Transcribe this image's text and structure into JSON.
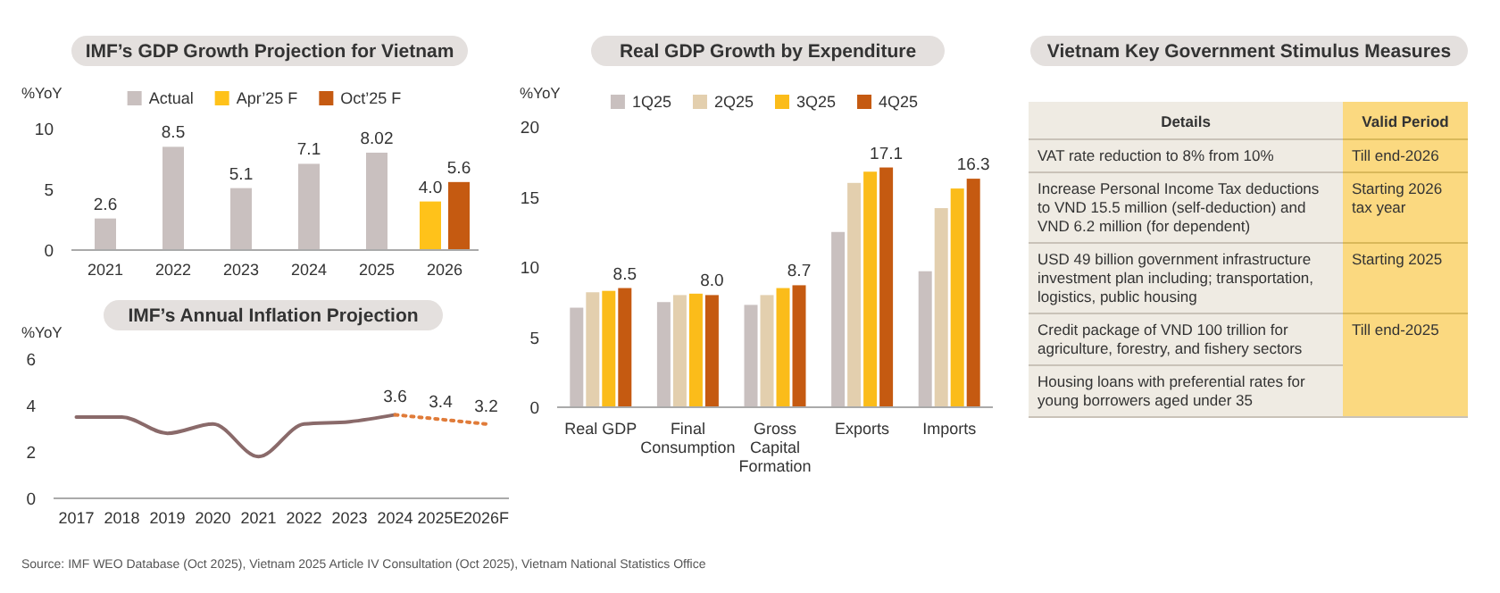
{
  "chart_data": [
    {
      "type": "bar",
      "title": "IMF’s GDP Growth Projection for Vietnam",
      "ylabel": "%YoY",
      "categories": [
        "2021",
        "2022",
        "2023",
        "2024",
        "2025",
        "2026"
      ],
      "ylim": [
        0,
        10
      ],
      "yticks": [
        0,
        5,
        10
      ],
      "legend": "top",
      "series": [
        {
          "name": "Actual",
          "color": "#c9c0bf",
          "values": [
            2.6,
            8.5,
            5.1,
            7.1,
            8.02,
            null
          ],
          "value_labels": [
            "2.6",
            "8.5",
            "5.1",
            "7.1",
            "8.02",
            null
          ]
        },
        {
          "name": "Apr’25 F",
          "color": "#ffc21a",
          "values": [
            null,
            null,
            null,
            null,
            null,
            4.0
          ],
          "value_labels": [
            null,
            null,
            null,
            null,
            null,
            "4.0"
          ]
        },
        {
          "name": "Oct’25 F",
          "color": "#c55a11",
          "values": [
            null,
            null,
            null,
            null,
            null,
            5.6
          ],
          "value_labels": [
            null,
            null,
            null,
            null,
            null,
            "5.6"
          ]
        }
      ],
      "annotations": [
        "Source: IMF WEO Database (Oct 2025), Vietnam 2025 Article IV Consultation (Oct 2025), Vietnam National Statistics Office"
      ]
    },
    {
      "type": "line",
      "title": "IMF’s Annual Inflation Projection",
      "ylabel": "%YoY",
      "categories": [
        "2017",
        "2018",
        "2019",
        "2020",
        "2021",
        "2022",
        "2023",
        "2024",
        "2025E",
        "2026F"
      ],
      "ylim": [
        0,
        6
      ],
      "yticks": [
        0,
        2,
        4,
        6
      ],
      "series": [
        {
          "color": "#8a6a6a",
          "line_style": "solid",
          "values": [
            3.5,
            3.5,
            2.8,
            3.2,
            1.8,
            3.2,
            3.3,
            3.6,
            null,
            null
          ],
          "value_labels": [
            null,
            null,
            null,
            null,
            null,
            null,
            null,
            "3.6",
            null,
            null
          ]
        },
        {
          "color": "#e07b39",
          "line_style": "dotted",
          "values": [
            null,
            null,
            null,
            null,
            null,
            null,
            null,
            3.6,
            3.4,
            3.2
          ],
          "value_labels": [
            null,
            null,
            null,
            null,
            null,
            null,
            null,
            null,
            "3.4",
            "3.2"
          ]
        }
      ]
    },
    {
      "type": "bar",
      "title": "Real GDP Growth by Expenditure",
      "ylabel": "%YoY",
      "categories": [
        "Real GDP",
        "Final Consumption",
        "Gross Capital Formation",
        "Exports",
        "Imports"
      ],
      "ylim": [
        0,
        20
      ],
      "yticks": [
        0,
        5,
        10,
        15,
        20
      ],
      "legend": "top",
      "series": [
        {
          "name": "1Q25",
          "color": "#c9c0bf",
          "values": [
            7.1,
            7.5,
            7.3,
            12.5,
            9.7
          ]
        },
        {
          "name": "2Q25",
          "color": "#e3cfae",
          "values": [
            8.2,
            8.0,
            8.0,
            16.0,
            14.2
          ]
        },
        {
          "name": "3Q25",
          "color": "#fbbc1a",
          "values": [
            8.3,
            8.1,
            8.5,
            16.8,
            15.6
          ]
        },
        {
          "name": "4Q25",
          "color": "#c55a11",
          "values": [
            8.5,
            8.0,
            8.7,
            17.1,
            16.3
          ],
          "value_labels": [
            "8.5",
            "8.0",
            "8.7",
            "17.1",
            "16.3"
          ]
        }
      ]
    },
    {
      "type": "other",
      "title": "Vietnam Key Government Stimulus Measures",
      "annotations": [
        "Details",
        "Valid Period",
        "VAT rate reduction to 8% from 10%",
        "Till end-2026",
        "Increase Personal Income Tax deductions to VND 15.5 million (self-deduction) and VND 6.2 million (for dependent)",
        "Starting 2026 tax year",
        "USD 49 billion government infrastructure investment plan including; transportation, logistics, public housing",
        "Starting 2025",
        "Credit package of VND 100 trillion for agriculture, forestry, and fishery sectors",
        "Till end-2025",
        "Housing loans with preferential rates for young borrowers aged under 35"
      ]
    }
  ]
}
